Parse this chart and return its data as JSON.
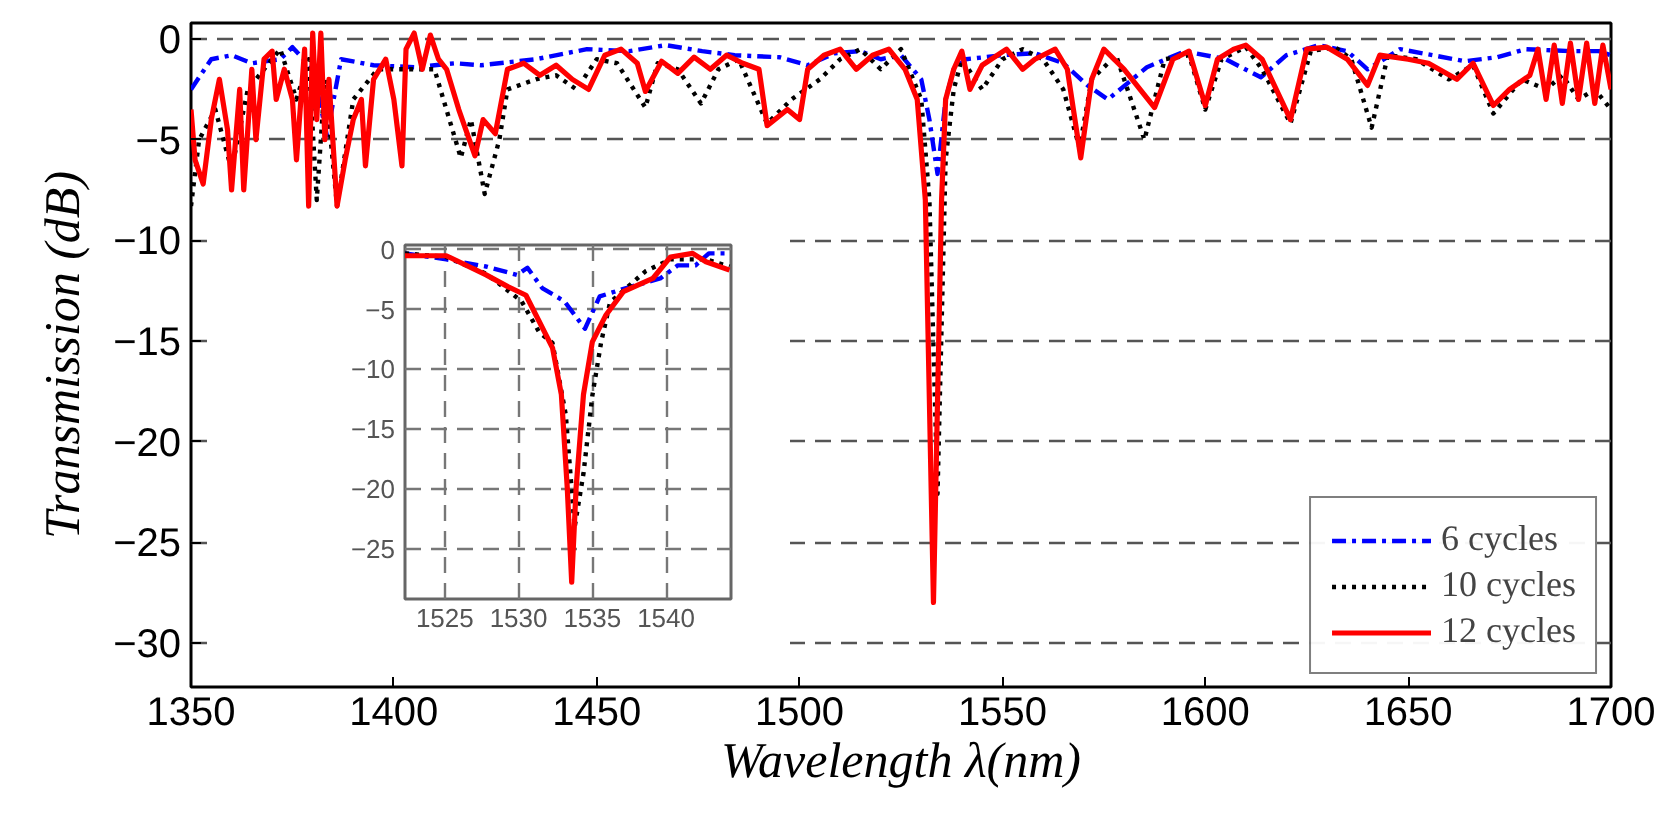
{
  "chart_data": [
    {
      "type": "line",
      "xlabel": "Wavelength λ(nm)",
      "ylabel": "Transmission (dB)",
      "xlim": [
        1350,
        1700
      ],
      "ylim": [
        -32.2,
        0.8
      ],
      "xticks": [
        1350,
        1400,
        1450,
        1500,
        1550,
        1600,
        1650,
        1700
      ],
      "yticks": [
        -30,
        -25,
        -20,
        -15,
        -10,
        -5,
        0
      ],
      "grid": "y",
      "legend": "bottom right",
      "series": [
        {
          "name": "6 cycles",
          "color": "#0000ff",
          "line_style": "dashdot",
          "x": [
            1350,
            1355,
            1360,
            1365,
            1372,
            1375,
            1380,
            1383.5,
            1387,
            1395,
            1405,
            1415,
            1421.5,
            1435,
            1447.6,
            1458,
            1467,
            1476,
            1484,
            1495,
            1502,
            1508.7,
            1515,
            1520,
            1525,
            1530,
            1532,
            1534,
            1536,
            1538,
            1541,
            1550,
            1558,
            1565,
            1571,
            1576,
            1585.6,
            1595,
            1605,
            1613.7,
            1620,
            1628,
            1635,
            1640,
            1648,
            1656,
            1664,
            1672,
            1679,
            1690,
            1697,
            1700
          ],
          "values": [
            -2.5,
            -1.0,
            -0.8,
            -1.2,
            -1.0,
            -0.4,
            -1.5,
            -4.8,
            -1.0,
            -1.3,
            -1.4,
            -1.2,
            -1.3,
            -1.0,
            -0.5,
            -0.6,
            -0.3,
            -0.6,
            -0.8,
            -0.9,
            -1.3,
            -0.7,
            -0.6,
            -1.0,
            -0.8,
            -2.0,
            -4.0,
            -6.7,
            -3.0,
            -1.5,
            -1.0,
            -0.8,
            -0.7,
            -1.2,
            -2.3,
            -3.0,
            -1.4,
            -0.6,
            -1.0,
            -1.9,
            -0.8,
            -0.3,
            -0.6,
            -1.5,
            -0.5,
            -0.8,
            -1.1,
            -0.9,
            -0.5,
            -0.6,
            -0.6,
            -0.8
          ]
        },
        {
          "name": "10 cycles",
          "color": "#000000",
          "line_style": "dotted",
          "x": [
            1350,
            1352,
            1356,
            1360,
            1364,
            1368,
            1372,
            1376,
            1379,
            1381,
            1383,
            1386,
            1390,
            1392,
            1396,
            1400,
            1405,
            1410,
            1416.5,
            1419,
            1422.4,
            1426,
            1428,
            1435,
            1440,
            1445,
            1450,
            1455,
            1462,
            1465,
            1470,
            1475.7,
            1480,
            1485,
            1492,
            1498,
            1505,
            1510,
            1515,
            1520,
            1525,
            1530,
            1532,
            1534,
            1536,
            1538,
            1540,
            1545,
            1550,
            1555,
            1560,
            1565,
            1569,
            1572,
            1578,
            1585,
            1590,
            1596,
            1600,
            1604,
            1610,
            1614,
            1621,
            1626,
            1632,
            1636,
            1641,
            1645,
            1652,
            1660,
            1666,
            1671,
            1678,
            1684,
            1688,
            1692,
            1696,
            1700
          ],
          "values": [
            -8.3,
            -5.0,
            -3.5,
            -6.5,
            -2.5,
            -1.5,
            -0.5,
            -3.0,
            -1.0,
            -8.0,
            -2.0,
            -8.3,
            -3.0,
            -2.5,
            -1.5,
            -1.5,
            -1.5,
            -1.5,
            -5.9,
            -4.0,
            -7.7,
            -5.0,
            -2.5,
            -2.0,
            -1.8,
            -2.5,
            -1.0,
            -1.2,
            -3.4,
            -1.2,
            -1.5,
            -3.2,
            -1.5,
            -1.0,
            -4.2,
            -3.0,
            -2.0,
            -1.0,
            -0.5,
            -1.5,
            -0.5,
            -3.0,
            -8.0,
            -22.6,
            -6.0,
            -2.5,
            -1.0,
            -2.5,
            -1.0,
            -0.5,
            -1.0,
            -2.5,
            -5.4,
            -2.0,
            -0.8,
            -5.0,
            -1.0,
            -0.8,
            -3.5,
            -1.0,
            -0.4,
            -1.5,
            -4.2,
            -0.6,
            -0.4,
            -1.0,
            -4.4,
            -0.8,
            -1.0,
            -2.0,
            -1.3,
            -3.7,
            -2.0,
            -2.5,
            -1.8,
            -3.0,
            -2.5,
            -3.5
          ]
        },
        {
          "name": "12 cycles",
          "color": "#ff0000",
          "line_style": "solid",
          "x": [
            1350,
            1351,
            1353,
            1355,
            1357,
            1359,
            1360,
            1362,
            1363,
            1365,
            1366,
            1368,
            1370,
            1371,
            1373,
            1375,
            1376,
            1378,
            1379,
            1380,
            1381,
            1382,
            1383,
            1384,
            1386,
            1388,
            1390,
            1392,
            1393,
            1395,
            1398,
            1400,
            1402,
            1403,
            1405,
            1407,
            1409,
            1411,
            1413,
            1416,
            1420,
            1422,
            1425,
            1428,
            1432,
            1436,
            1440,
            1444,
            1448,
            1452,
            1456,
            1460,
            1462,
            1466,
            1470,
            1474,
            1478,
            1482,
            1486,
            1490,
            1492,
            1497,
            1500,
            1502,
            1506,
            1510,
            1514,
            1518,
            1522,
            1526,
            1529,
            1531,
            1533,
            1535,
            1536,
            1538,
            1540,
            1542,
            1545,
            1551,
            1555,
            1558,
            1563,
            1566,
            1569.3,
            1572,
            1575,
            1580,
            1587.5,
            1592,
            1596,
            1600,
            1603,
            1607,
            1610,
            1614,
            1621,
            1625,
            1630,
            1635,
            1640,
            1643,
            1650,
            1655,
            1662,
            1666,
            1671,
            1675,
            1680,
            1682,
            1684,
            1686,
            1688,
            1690,
            1692,
            1694,
            1696,
            1698,
            1700
          ],
          "values": [
            -3.5,
            -6.0,
            -7.2,
            -4.0,
            -2.0,
            -4.5,
            -7.5,
            -2.5,
            -7.5,
            -1.5,
            -5.0,
            -1.0,
            -0.6,
            -3.0,
            -1.5,
            -3.0,
            -6.0,
            -0.5,
            -8.3,
            0.3,
            -4.0,
            0.3,
            -5.0,
            -2.0,
            -8.3,
            -6.0,
            -4.0,
            -3.0,
            -6.3,
            -2.0,
            -1.0,
            -3.0,
            -6.3,
            -0.5,
            0.3,
            -1.5,
            0.2,
            -1.0,
            -1.5,
            -3.5,
            -5.8,
            -4.0,
            -4.7,
            -1.5,
            -1.2,
            -1.8,
            -1.3,
            -2.0,
            -2.5,
            -0.8,
            -0.5,
            -1.2,
            -2.6,
            -1.1,
            -1.7,
            -0.9,
            -1.5,
            -0.8,
            -1.2,
            -1.5,
            -4.3,
            -3.5,
            -4.0,
            -1.5,
            -0.8,
            -0.5,
            -1.5,
            -0.8,
            -0.5,
            -1.5,
            -3.0,
            -8.0,
            -28.0,
            -8.0,
            -3.0,
            -1.5,
            -0.6,
            -2.5,
            -1.3,
            -0.5,
            -1.5,
            -1.0,
            -0.5,
            -1.5,
            -5.9,
            -2.0,
            -0.5,
            -1.5,
            -3.4,
            -1.0,
            -0.6,
            -3.3,
            -1.0,
            -0.5,
            -0.3,
            -1.0,
            -4.0,
            -0.5,
            -0.4,
            -1.0,
            -2.3,
            -0.8,
            -1.0,
            -1.2,
            -2.0,
            -1.2,
            -3.3,
            -2.5,
            -1.8,
            -0.5,
            -3.0,
            -0.3,
            -3.2,
            -0.2,
            -3.0,
            -0.2,
            -3.2,
            -0.3,
            -2.5
          ]
        }
      ]
    },
    {
      "type": "line",
      "xlim": [
        1522.3,
        1544.4
      ],
      "ylim": [
        -29.2,
        0.4
      ],
      "xticks": [
        1525,
        1530,
        1535,
        1540
      ],
      "yticks": [
        -25,
        -20,
        -15,
        -10,
        -5,
        0
      ],
      "grid": true,
      "series": [
        {
          "color": "#0000ff",
          "line_style": "dashdot",
          "x": [
            1522.3,
            1525.1,
            1527.8,
            1529.9,
            1530.6,
            1531.6,
            1533.1,
            1534.5,
            1535.5,
            1537.3,
            1539.6,
            1540.8,
            1542,
            1542.9,
            1544.3
          ],
          "values": [
            -0.3,
            -0.8,
            -1.4,
            -2.1,
            -1.5,
            -3.2,
            -4.3,
            -6.6,
            -3.9,
            -3.2,
            -2.4,
            -1.3,
            -1.3,
            -0.3,
            -0.3
          ]
        },
        {
          "color": "#000000",
          "line_style": "dotted",
          "x": [
            1522.3,
            1525.1,
            1527.8,
            1530.2,
            1531.4,
            1532.3,
            1533.2,
            1533.8,
            1534.4,
            1535,
            1535.6,
            1536.2,
            1538.6,
            1540.3,
            1542.7,
            1544.3
          ],
          "values": [
            -0.3,
            -0.6,
            -2.0,
            -4.3,
            -6.9,
            -7.8,
            -13.8,
            -23.2,
            -18.7,
            -12.2,
            -7.7,
            -4.4,
            -1.8,
            -0.8,
            -0.8,
            -1.4
          ]
        },
        {
          "color": "#ff0000",
          "line_style": "solid",
          "x": [
            1522.3,
            1525.1,
            1527.8,
            1529.3,
            1530.5,
            1531.4,
            1532.3,
            1532.9,
            1533.3,
            1533.6,
            1533.9,
            1534.4,
            1535,
            1535.9,
            1537.1,
            1539.1,
            1540.3,
            1541.8,
            1542.7,
            1544.3
          ],
          "values": [
            -0.5,
            -0.5,
            -2.1,
            -3.1,
            -3.8,
            -6.0,
            -8.2,
            -12.1,
            -19.9,
            -27.8,
            -19.9,
            -12.1,
            -7.7,
            -5.5,
            -3.5,
            -2.4,
            -0.6,
            -0.3,
            -1.0,
            -1.7
          ]
        }
      ]
    }
  ]
}
